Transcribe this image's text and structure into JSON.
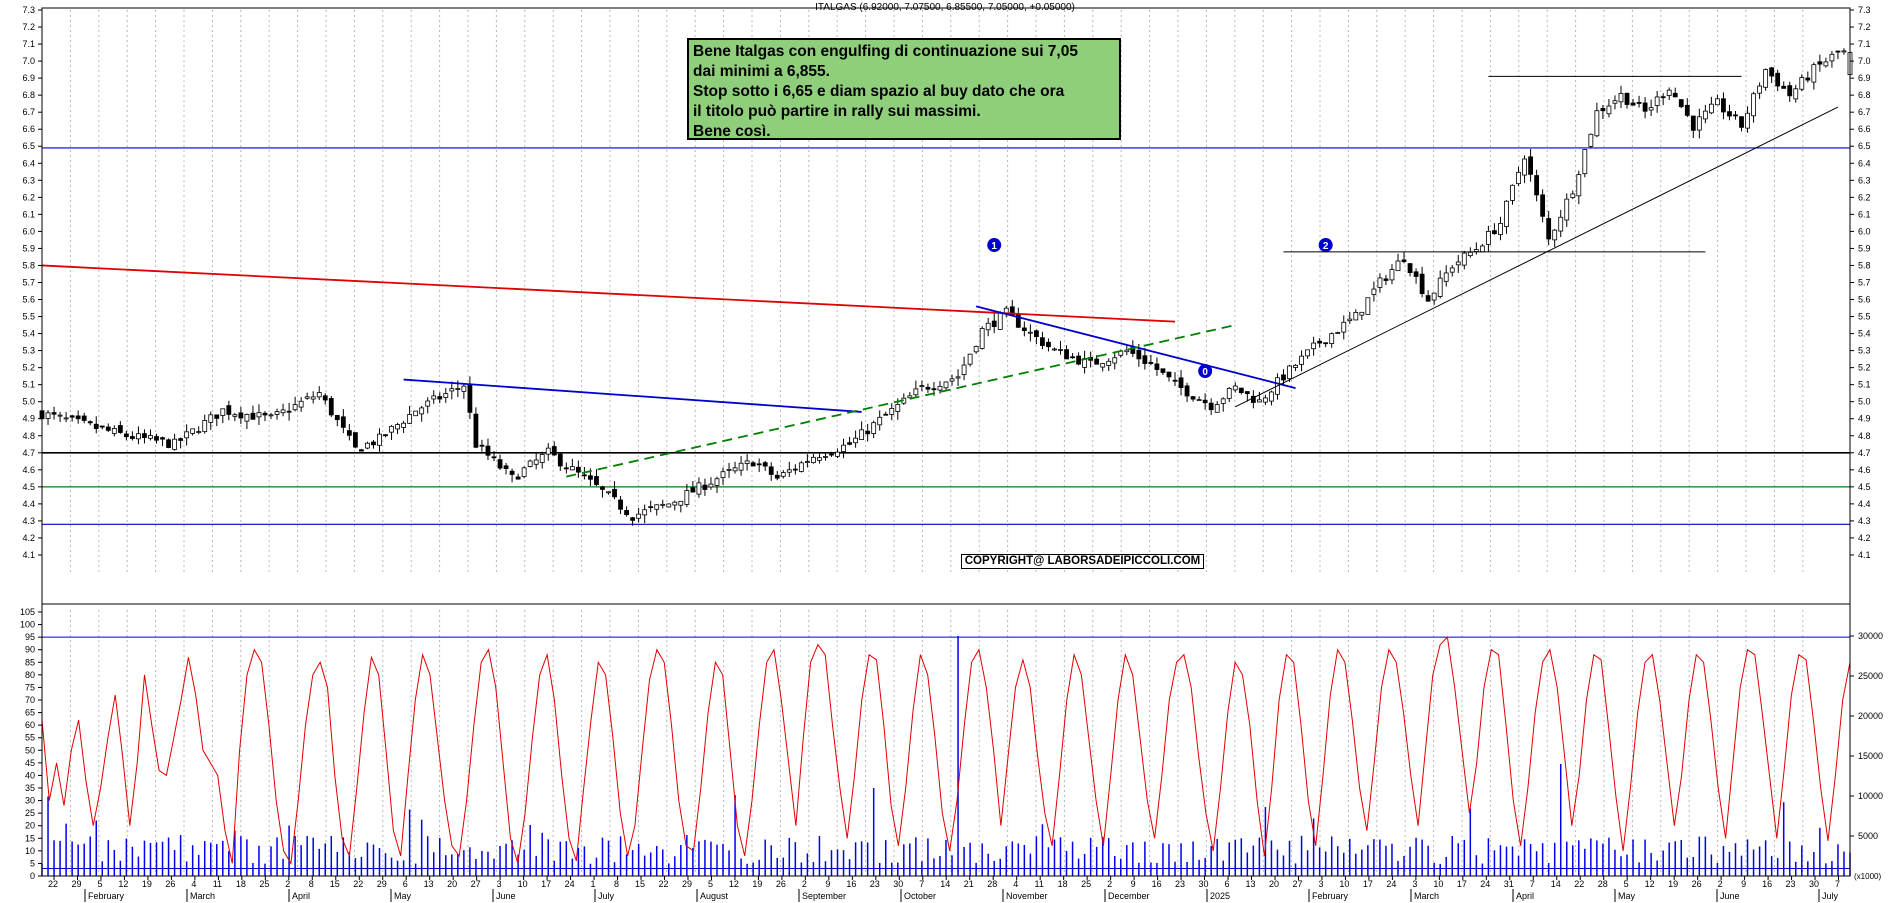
{
  "header": "ITALGAS (6.92000, 7.07500, 6.85500, 7.05000, +0.05000)",
  "note": [
    "Bene Italgas con engulfing di continuazione sui 7,05",
    "dai minimi a 6,855.",
    "Stop sotto i 6,65 e diam spazio al buy dato che ora",
    "il titolo può partire in rally sui massimi.",
    "Bene così."
  ],
  "copyright": "COPYRIGHT@ LABORSADEIPICCOLI.COM",
  "markers": [
    {
      "label": "1",
      "date_index": 158,
      "price": 5.92
    },
    {
      "label": "2",
      "date_index": 213,
      "price": 5.92
    },
    {
      "label": "0",
      "date_index": 193,
      "price": 5.18
    }
  ],
  "colors": {
    "candle": "#000000",
    "red_trend": "#e00000",
    "blue_trend": "#0000cc",
    "support_green": "#008000",
    "oscillator": "#e00000",
    "volume": "#0000ee",
    "note_bg": "#8fce7a"
  },
  "chart_data": [
    {
      "type": "candlestick",
      "title": "ITALGAS",
      "ylim": [
        4.0,
        7.3
      ],
      "y_ticks": [
        4.1,
        4.2,
        4.3,
        4.4,
        4.5,
        4.6,
        4.7,
        4.8,
        4.9,
        5.0,
        5.1,
        5.2,
        5.3,
        5.4,
        5.5,
        5.6,
        5.7,
        5.8,
        5.9,
        6.0,
        6.1,
        6.2,
        6.3,
        6.4,
        6.5,
        6.6,
        6.7,
        6.8,
        6.9,
        7.0,
        7.1,
        7.2,
        7.3
      ],
      "y_tick_labels": [
        "4.1",
        "4.2",
        "4.3",
        "4.4",
        "4.5",
        "4.6",
        "4.7",
        "4.8",
        "4.9",
        "5.0",
        "5.1",
        "5.2",
        "5.3",
        "5.4",
        "5.5",
        "5.6",
        "5.7",
        "5.8",
        "5.9",
        "6.0",
        "6.1",
        "6.2",
        "6.3",
        "6.4",
        "6.5",
        "6.6",
        "6.7",
        "6.8",
        "6.9",
        "7.0",
        "7.1",
        "7.2",
        "7.3"
      ],
      "x_day_labels": [
        "22",
        "29",
        "5",
        "12",
        "19",
        "26",
        "4",
        "11",
        "18",
        "25",
        "2",
        "8",
        "15",
        "22",
        "29",
        "6",
        "13",
        "20",
        "27",
        "3",
        "10",
        "17",
        "24",
        "1",
        "8",
        "15",
        "22",
        "29",
        "5",
        "12",
        "19",
        "26",
        "2",
        "9",
        "16",
        "23",
        "30",
        "7",
        "14",
        "21",
        "28",
        "4",
        "11",
        "18",
        "25",
        "2",
        "9",
        "16",
        "23",
        "30",
        "6",
        "13",
        "20",
        "27",
        "3",
        "10",
        "17",
        "24",
        "3",
        "10",
        "17",
        "24",
        "31",
        "7",
        "14",
        "22",
        "28",
        "5",
        "12",
        "19",
        "26",
        "2",
        "9",
        "16",
        "23",
        "30",
        "7"
      ],
      "x_month_labels": [
        "February",
        "March",
        "April",
        "May",
        "June",
        "July",
        "August",
        "September",
        "October",
        "November",
        "December",
        "2025",
        "February",
        "March",
        "April",
        "May",
        "June",
        "July"
      ],
      "last_bar": {
        "open": 6.92,
        "high": 7.075,
        "low": 6.855,
        "close": 7.05
      },
      "close_path": [
        [
          0,
          4.93
        ],
        [
          14,
          4.8
        ],
        [
          22,
          4.75
        ],
        [
          30,
          4.95
        ],
        [
          38,
          4.9
        ],
        [
          46,
          5.05
        ],
        [
          52,
          4.72
        ],
        [
          56,
          4.78
        ],
        [
          62,
          4.95
        ],
        [
          70,
          5.1
        ],
        [
          72,
          4.75
        ],
        [
          78,
          4.55
        ],
        [
          84,
          4.7
        ],
        [
          92,
          4.5
        ],
        [
          98,
          4.33
        ],
        [
          104,
          4.4
        ],
        [
          112,
          4.55
        ],
        [
          118,
          4.65
        ],
        [
          122,
          4.55
        ],
        [
          128,
          4.68
        ],
        [
          134,
          4.75
        ],
        [
          140,
          4.92
        ],
        [
          146,
          5.08
        ],
        [
          152,
          5.15
        ],
        [
          156,
          5.42
        ],
        [
          160,
          5.52
        ],
        [
          164,
          5.4
        ],
        [
          168,
          5.3
        ],
        [
          174,
          5.22
        ],
        [
          180,
          5.3
        ],
        [
          184,
          5.22
        ],
        [
          188,
          5.1
        ],
        [
          194,
          4.98
        ],
        [
          198,
          5.08
        ],
        [
          202,
          5.0
        ],
        [
          206,
          5.15
        ],
        [
          212,
          5.35
        ],
        [
          218,
          5.5
        ],
        [
          222,
          5.7
        ],
        [
          226,
          5.85
        ],
        [
          230,
          5.6
        ],
        [
          234,
          5.8
        ],
        [
          238,
          5.9
        ],
        [
          242,
          6.05
        ],
        [
          246,
          6.45
        ],
        [
          250,
          5.95
        ],
        [
          254,
          6.25
        ],
        [
          258,
          6.7
        ],
        [
          262,
          6.8
        ],
        [
          266,
          6.7
        ],
        [
          270,
          6.85
        ],
        [
          274,
          6.62
        ],
        [
          278,
          6.75
        ],
        [
          282,
          6.62
        ],
        [
          286,
          6.95
        ],
        [
          290,
          6.8
        ],
        [
          294,
          6.95
        ],
        [
          298,
          7.05
        ]
      ],
      "horizontal_lines": [
        {
          "price": 6.49,
          "color": "blue"
        },
        {
          "price": 4.7,
          "color": "black"
        },
        {
          "price": 4.5,
          "color": "green"
        },
        {
          "price": 4.28,
          "color": "blue"
        }
      ],
      "trendlines": [
        {
          "color": "red",
          "from": [
            0,
            5.8
          ],
          "to": [
            188,
            5.47
          ]
        },
        {
          "color": "blue",
          "from": [
            60,
            5.13
          ],
          "to": [
            136,
            4.94
          ]
        },
        {
          "color": "blue",
          "from": [
            155,
            5.56
          ],
          "to": [
            208,
            5.08
          ]
        },
        {
          "color": "green",
          "style": "dashed",
          "from": [
            87,
            4.56
          ],
          "to": [
            198,
            5.45
          ]
        },
        {
          "color": "black",
          "from": [
            198,
            4.97
          ],
          "to": [
            298,
            6.73
          ]
        },
        {
          "color": "black",
          "from": [
            206,
            5.88
          ],
          "to": [
            276,
            5.88
          ]
        },
        {
          "color": "black",
          "from": [
            240,
            6.91
          ],
          "to": [
            282,
            6.91
          ]
        }
      ]
    },
    {
      "type": "line",
      "series_label": "oscillator",
      "ylim": [
        0,
        105
      ],
      "y_ticks": [
        0,
        5,
        10,
        15,
        20,
        25,
        30,
        35,
        40,
        45,
        50,
        55,
        60,
        65,
        70,
        75,
        80,
        85,
        90,
        95,
        100,
        105
      ],
      "y_tick_labels": [
        "0",
        "5",
        "10",
        "15",
        "20",
        "25",
        "30",
        "35",
        "40",
        "45",
        "50",
        "55",
        "60",
        "65",
        "70",
        "75",
        "80",
        "85",
        "90",
        "95",
        "100",
        "105"
      ],
      "reference_lines": [
        95,
        3
      ],
      "values": [
        62,
        30,
        45,
        28,
        50,
        62,
        38,
        20,
        35,
        55,
        72,
        48,
        20,
        45,
        80,
        60,
        42,
        40,
        55,
        70,
        87,
        72,
        50,
        45,
        40,
        18,
        5,
        50,
        80,
        90,
        85,
        60,
        30,
        10,
        5,
        30,
        60,
        80,
        85,
        75,
        40,
        15,
        8,
        35,
        65,
        87,
        80,
        50,
        18,
        8,
        40,
        70,
        88,
        80,
        55,
        30,
        12,
        8,
        30,
        60,
        85,
        90,
        75,
        45,
        15,
        5,
        25,
        55,
        80,
        88,
        70,
        40,
        15,
        6,
        35,
        62,
        85,
        80,
        55,
        25,
        8,
        20,
        50,
        78,
        90,
        85,
        60,
        30,
        12,
        10,
        35,
        65,
        85,
        80,
        50,
        20,
        8,
        30,
        60,
        85,
        90,
        70,
        45,
        20,
        55,
        85,
        92,
        88,
        60,
        35,
        15,
        40,
        70,
        88,
        86,
        60,
        28,
        12,
        35,
        66,
        88,
        80,
        55,
        25,
        10,
        30,
        60,
        85,
        90,
        75,
        50,
        20,
        48,
        75,
        86,
        75,
        48,
        25,
        12,
        40,
        70,
        88,
        80,
        55,
        30,
        12,
        40,
        70,
        88,
        80,
        55,
        30,
        15,
        40,
        70,
        85,
        88,
        75,
        48,
        25,
        10,
        35,
        65,
        85,
        80,
        60,
        30,
        8,
        35,
        70,
        88,
        85,
        60,
        30,
        12,
        40,
        72,
        90,
        85,
        62,
        35,
        18,
        45,
        75,
        90,
        85,
        65,
        40,
        20,
        50,
        80,
        92,
        95,
        75,
        50,
        25,
        45,
        75,
        90,
        88,
        60,
        30,
        12,
        35,
        65,
        85,
        90,
        75,
        48,
        20,
        40,
        70,
        88,
        86,
        60,
        32,
        10,
        35,
        65,
        85,
        88,
        70,
        45,
        20,
        40,
        70,
        88,
        85,
        62,
        35,
        15,
        45,
        75,
        90,
        88,
        65,
        40,
        15,
        42,
        72,
        88,
        86,
        62,
        35,
        14,
        40,
        70,
        85
      ],
      "y2_ticks": [
        5000,
        10000,
        15000,
        20000,
        25000,
        30000
      ],
      "y2_tick_labels": [
        "5000",
        "10000",
        "15000",
        "20000",
        "25000",
        "30000"
      ],
      "y2_unit": "(x1000)"
    }
  ]
}
